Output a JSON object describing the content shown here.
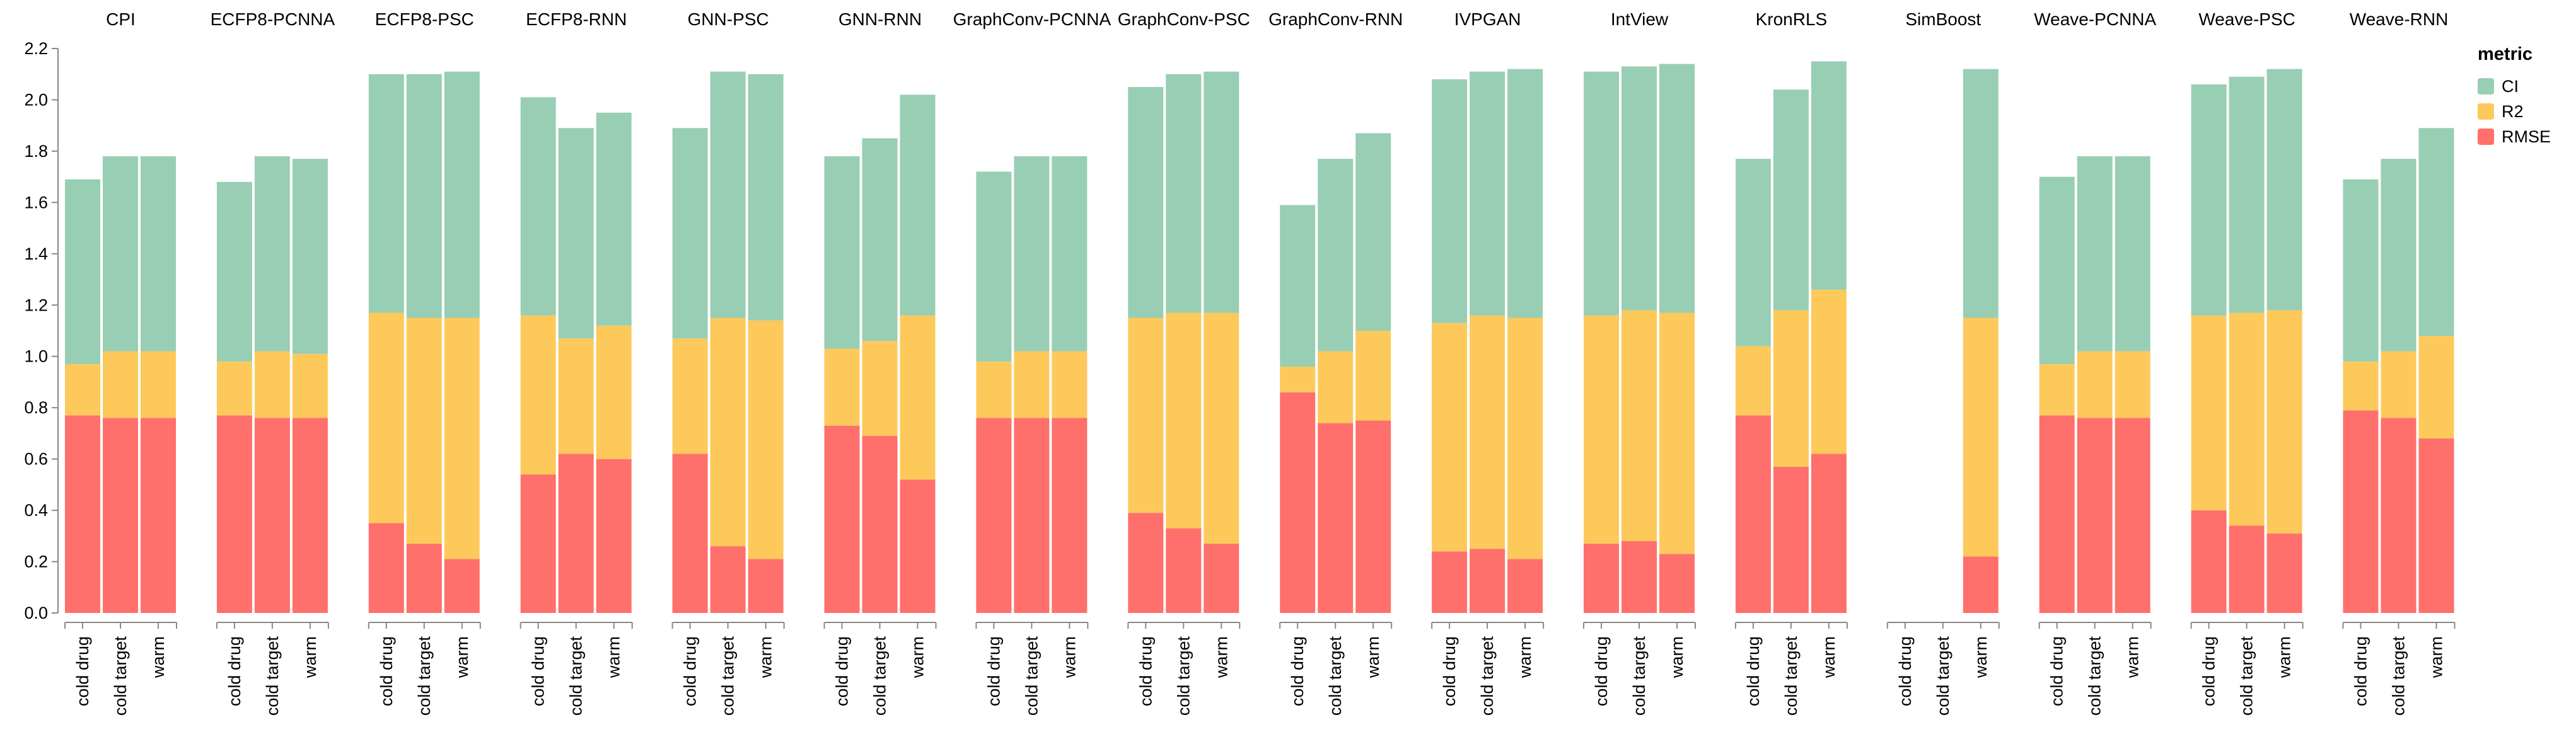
{
  "chart_data": {
    "type": "bar",
    "stacked": true,
    "faceted": true,
    "y_ticks": [
      "0.0",
      "0.2",
      "0.4",
      "0.6",
      "0.8",
      "1.0",
      "1.2",
      "1.4",
      "1.6",
      "1.8",
      "2.0",
      "2.2"
    ],
    "ylim": [
      0,
      2.2
    ],
    "categories": [
      "cold drug",
      "cold target",
      "warm"
    ],
    "stack_order": [
      "RMSE",
      "R2",
      "CI"
    ],
    "legend": {
      "title": "metric",
      "position": "top-right",
      "items": [
        {
          "name": "CI",
          "color": "#98ceb4"
        },
        {
          "name": "R2",
          "color": "#fdc95b"
        },
        {
          "name": "RMSE",
          "color": "#ff6f6b"
        }
      ]
    },
    "facets": [
      {
        "name": "CPI",
        "values": {
          "RMSE": [
            0.77,
            0.76,
            0.76
          ],
          "R2": [
            0.2,
            0.26,
            0.26
          ],
          "CI": [
            0.72,
            0.76,
            0.76
          ]
        }
      },
      {
        "name": "ECFP8-PCNNA",
        "values": {
          "RMSE": [
            0.77,
            0.76,
            0.76
          ],
          "R2": [
            0.21,
            0.26,
            0.25
          ],
          "CI": [
            0.7,
            0.76,
            0.76
          ]
        }
      },
      {
        "name": "ECFP8-PSC",
        "values": {
          "RMSE": [
            0.35,
            0.27,
            0.21
          ],
          "R2": [
            0.82,
            0.88,
            0.94
          ],
          "CI": [
            0.93,
            0.95,
            0.96
          ]
        }
      },
      {
        "name": "ECFP8-RNN",
        "values": {
          "RMSE": [
            0.54,
            0.62,
            0.6
          ],
          "R2": [
            0.62,
            0.45,
            0.52
          ],
          "CI": [
            0.85,
            0.82,
            0.83
          ]
        }
      },
      {
        "name": "GNN-PSC",
        "values": {
          "RMSE": [
            0.62,
            0.26,
            0.21
          ],
          "R2": [
            0.45,
            0.89,
            0.93
          ],
          "CI": [
            0.82,
            0.96,
            0.96
          ]
        }
      },
      {
        "name": "GNN-RNN",
        "values": {
          "RMSE": [
            0.73,
            0.69,
            0.52
          ],
          "R2": [
            0.3,
            0.37,
            0.64
          ],
          "CI": [
            0.75,
            0.79,
            0.86
          ]
        }
      },
      {
        "name": "GraphConv-PCNNA",
        "values": {
          "RMSE": [
            0.76,
            0.76,
            0.76
          ],
          "R2": [
            0.22,
            0.26,
            0.26
          ],
          "CI": [
            0.74,
            0.76,
            0.76
          ]
        }
      },
      {
        "name": "GraphConv-PSC",
        "values": {
          "RMSE": [
            0.39,
            0.33,
            0.27
          ],
          "R2": [
            0.76,
            0.84,
            0.9
          ],
          "CI": [
            0.9,
            0.93,
            0.94
          ]
        }
      },
      {
        "name": "GraphConv-RNN",
        "values": {
          "RMSE": [
            0.86,
            0.74,
            0.75
          ],
          "R2": [
            0.1,
            0.28,
            0.35
          ],
          "CI": [
            0.63,
            0.75,
            0.77
          ]
        }
      },
      {
        "name": "IVPGAN",
        "values": {
          "RMSE": [
            0.24,
            0.25,
            0.21
          ],
          "R2": [
            0.89,
            0.91,
            0.94
          ],
          "CI": [
            0.95,
            0.95,
            0.97
          ]
        }
      },
      {
        "name": "IntView",
        "values": {
          "RMSE": [
            0.27,
            0.28,
            0.23
          ],
          "R2": [
            0.89,
            0.9,
            0.94
          ],
          "CI": [
            0.95,
            0.95,
            0.97
          ]
        }
      },
      {
        "name": "KronRLS",
        "values": {
          "RMSE": [
            0.77,
            0.57,
            0.62
          ],
          "R2": [
            0.27,
            0.61,
            0.64
          ],
          "CI": [
            0.73,
            0.86,
            0.89
          ]
        }
      },
      {
        "name": "SimBoost",
        "values": {
          "RMSE": [
            0,
            0,
            0.22
          ],
          "R2": [
            0,
            0,
            0.93
          ],
          "CI": [
            0,
            0,
            0.97
          ]
        }
      },
      {
        "name": "Weave-PCNNA",
        "values": {
          "RMSE": [
            0.77,
            0.76,
            0.76
          ],
          "R2": [
            0.2,
            0.26,
            0.26
          ],
          "CI": [
            0.73,
            0.76,
            0.76
          ]
        }
      },
      {
        "name": "Weave-PSC",
        "values": {
          "RMSE": [
            0.4,
            0.34,
            0.31
          ],
          "R2": [
            0.76,
            0.83,
            0.87
          ],
          "CI": [
            0.9,
            0.92,
            0.94
          ]
        }
      },
      {
        "name": "Weave-RNN",
        "values": {
          "RMSE": [
            0.79,
            0.76,
            0.68
          ],
          "R2": [
            0.19,
            0.26,
            0.4
          ],
          "CI": [
            0.71,
            0.75,
            0.81
          ]
        }
      }
    ]
  }
}
